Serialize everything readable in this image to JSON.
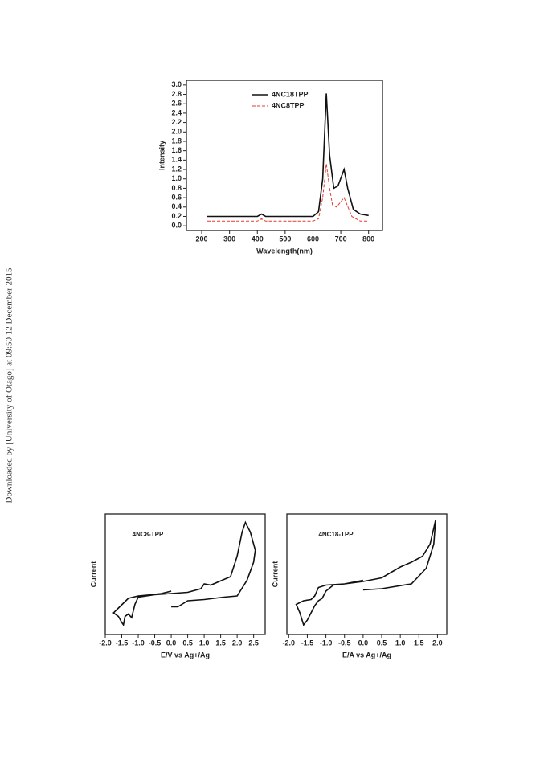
{
  "watermark": "Downloaded by [University of Otago] at 09:50 12 December 2015",
  "chart_data": [
    {
      "type": "line",
      "xlabel": "Wavelength(nm)",
      "ylabel": "Intensity",
      "xlim": [
        145,
        850
      ],
      "ylim": [
        -0.1,
        3.1
      ],
      "xticks": [
        200,
        300,
        400,
        500,
        600,
        700,
        800
      ],
      "yticks": [
        {
          "value": 0,
          "label": "0.0"
        },
        {
          "value": 0.2,
          "label": "0.2"
        },
        {
          "value": 0.4,
          "label": "0.4"
        },
        {
          "value": 0.6,
          "label": "0.6"
        },
        {
          "value": 0.8,
          "label": "0.8"
        },
        {
          "value": 1,
          "label": "1.0"
        },
        {
          "value": 1.2,
          "label": "1.2"
        },
        {
          "value": 1.4,
          "label": "1.4"
        },
        {
          "value": 1.6,
          "label": "1.6"
        },
        {
          "value": 1.8,
          "label": "1.8"
        },
        {
          "value": 2,
          "label": "2.0"
        },
        {
          "value": 2.2,
          "label": "2.2"
        },
        {
          "value": 2.4,
          "label": "2.4"
        },
        {
          "value": 2.6,
          "label": "2.6"
        },
        {
          "value": 2.8,
          "label": "2.8"
        },
        {
          "value": 3,
          "label": "3.0"
        }
      ],
      "legend": "upper center",
      "series": [
        {
          "name": "4NC18TPP",
          "color": "#111111",
          "linestyle": "solid",
          "x": [
            220,
            400,
            415,
            430,
            600,
            620,
            635,
            648,
            660,
            675,
            690,
            712,
            725,
            745,
            770,
            800
          ],
          "values": [
            0.2,
            0.2,
            0.25,
            0.2,
            0.2,
            0.3,
            1.0,
            2.82,
            1.5,
            0.8,
            0.85,
            1.2,
            0.8,
            0.35,
            0.25,
            0.22
          ]
        },
        {
          "name": "4NC8TPP",
          "color": "#e03c31",
          "linestyle": "dashed",
          "x": [
            220,
            400,
            415,
            430,
            600,
            620,
            635,
            648,
            660,
            670,
            685,
            712,
            740,
            770,
            800
          ],
          "values": [
            0.1,
            0.1,
            0.15,
            0.1,
            0.1,
            0.15,
            0.6,
            1.32,
            0.8,
            0.45,
            0.4,
            0.6,
            0.2,
            0.1,
            0.1
          ]
        }
      ]
    },
    {
      "type": "line",
      "xlabel": "E/V vs Ag+/Ag",
      "ylabel": "Current",
      "annotation": "4NC8-TPP",
      "xlim": [
        -2.0,
        2.85
      ],
      "ylim": [
        0,
        1
      ],
      "xticks": [
        {
          "value": -2,
          "label": "-2.0"
        },
        {
          "value": -1.5,
          "label": "-1.5"
        },
        {
          "value": -1,
          "label": "-1.0"
        },
        {
          "value": -0.5,
          "label": "-0.5"
        },
        {
          "value": 0,
          "label": "0.0"
        },
        {
          "value": 0.5,
          "label": "0.5"
        },
        {
          "value": 1,
          "label": "1.0"
        },
        {
          "value": 1.5,
          "label": "1.5"
        },
        {
          "value": 2,
          "label": "2.0"
        },
        {
          "value": 2.5,
          "label": "2.5"
        }
      ],
      "series": [
        {
          "color": "#111111",
          "linestyle": "solid",
          "x": [
            0.0,
            -0.3,
            -0.6,
            -1.0,
            -1.3,
            -1.6,
            -1.75,
            -1.6,
            -1.5,
            -1.45,
            -1.4,
            -1.3,
            -1.2,
            -1.1,
            -1.0,
            -0.5,
            0.0,
            0.5,
            0.9,
            1.0,
            1.2,
            1.8,
            2.0,
            2.15,
            2.25,
            2.4,
            2.55,
            2.5,
            2.3,
            2.0,
            1.6,
            1.0,
            0.5,
            0.2,
            0.0
          ],
          "values": [
            0.36,
            0.34,
            0.33,
            0.32,
            0.3,
            0.22,
            0.18,
            0.15,
            0.1,
            0.08,
            0.15,
            0.17,
            0.14,
            0.25,
            0.31,
            0.33,
            0.34,
            0.35,
            0.38,
            0.42,
            0.41,
            0.48,
            0.65,
            0.85,
            0.93,
            0.85,
            0.7,
            0.6,
            0.45,
            0.32,
            0.31,
            0.29,
            0.28,
            0.23,
            0.23
          ]
        }
      ]
    },
    {
      "type": "line",
      "xlabel": "E/A vs Ag+/Ag",
      "ylabel": "Current",
      "annotation": "4NC18-TPP",
      "xlim": [
        -2.05,
        2.25
      ],
      "ylim": [
        0,
        1
      ],
      "xticks": [
        {
          "value": -2,
          "label": "-2.0"
        },
        {
          "value": -1.5,
          "label": "-1.5"
        },
        {
          "value": -1,
          "label": "-1.0"
        },
        {
          "value": -0.5,
          "label": "-0.5"
        },
        {
          "value": 0,
          "label": "0.0"
        },
        {
          "value": 0.5,
          "label": "0.5"
        },
        {
          "value": 1,
          "label": "1.0"
        },
        {
          "value": 1.5,
          "label": "1.5"
        },
        {
          "value": 2,
          "label": "2.0"
        }
      ],
      "series": [
        {
          "color": "#111111",
          "linestyle": "solid",
          "x": [
            0.0,
            -0.5,
            -0.8,
            -1.0,
            -1.1,
            -1.2,
            -1.3,
            -1.5,
            -1.6,
            -1.7,
            -1.8,
            -1.6,
            -1.4,
            -1.3,
            -1.2,
            -1.0,
            -0.5,
            0.0,
            0.5,
            1.0,
            1.3,
            1.6,
            1.8,
            1.95,
            1.9,
            1.7,
            1.3,
            0.5,
            0.0
          ],
          "values": [
            0.45,
            0.42,
            0.41,
            0.36,
            0.3,
            0.28,
            0.24,
            0.12,
            0.08,
            0.18,
            0.25,
            0.28,
            0.29,
            0.32,
            0.39,
            0.41,
            0.42,
            0.44,
            0.47,
            0.56,
            0.6,
            0.65,
            0.75,
            0.95,
            0.75,
            0.55,
            0.42,
            0.38,
            0.37
          ]
        }
      ]
    }
  ]
}
